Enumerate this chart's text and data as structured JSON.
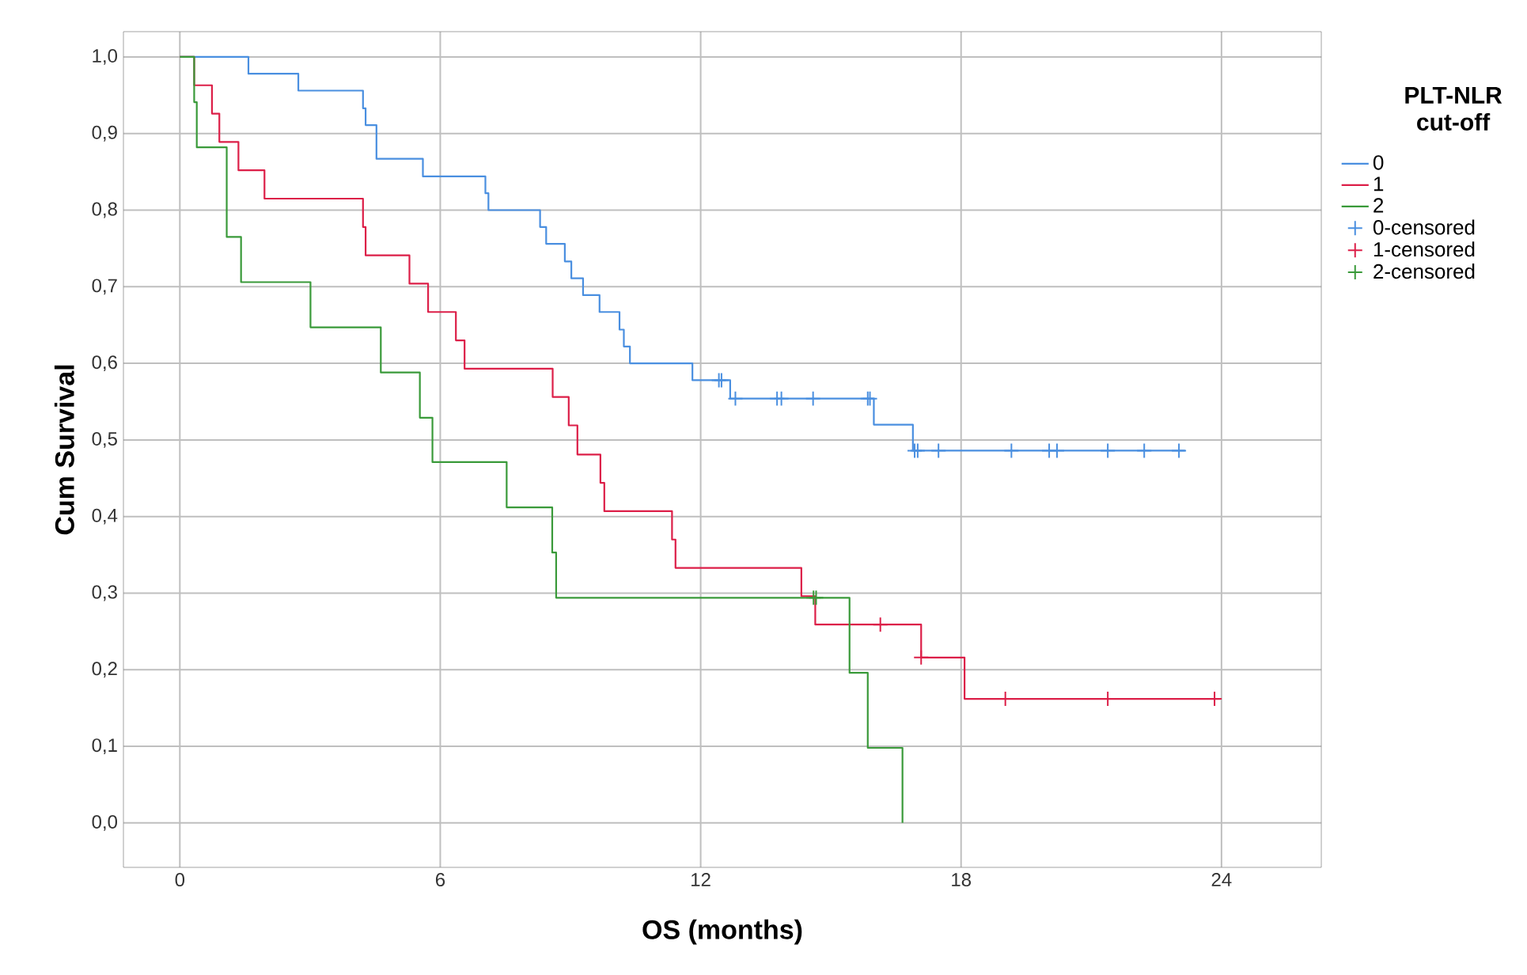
{
  "chart_data": {
    "type": "step",
    "xlabel": "OS (months)",
    "ylabel": "Cum Survival",
    "legend_title": "PLT-NLR cut-off",
    "xlim": [
      -1.3,
      26.3
    ],
    "ylim": [
      -0.058,
      1.033
    ],
    "xticks": [
      0,
      6,
      12,
      18,
      24
    ],
    "yticks": [
      {
        "value": 0,
        "label": "0,0"
      },
      {
        "value": 0.1,
        "label": "0,1"
      },
      {
        "value": 0.2,
        "label": "0,2"
      },
      {
        "value": 0.3,
        "label": "0,3"
      },
      {
        "value": 0.4,
        "label": "0,4"
      },
      {
        "value": 0.5,
        "label": "0,5"
      },
      {
        "value": 0.6,
        "label": "0,6"
      },
      {
        "value": 0.7,
        "label": "0,7"
      },
      {
        "value": 0.8,
        "label": "0,8"
      },
      {
        "value": 0.9,
        "label": "0,9"
      },
      {
        "value": 1.0,
        "label": "1,0"
      }
    ],
    "grid": true,
    "legend": "right",
    "series": [
      {
        "name": "0",
        "color": "#4a8fe0",
        "x": [
          0,
          1.58,
          2.73,
          4.22,
          4.28,
          4.53,
          5.6,
          7.04,
          7.11,
          8.3,
          8.44,
          8.87,
          9.02,
          9.29,
          9.67,
          10.13,
          10.23,
          10.37,
          11.81,
          12.68,
          15.99,
          16.89,
          23.16
        ],
        "values": [
          1.0,
          0.978,
          0.956,
          0.933,
          0.911,
          0.867,
          0.844,
          0.822,
          0.8,
          0.778,
          0.756,
          0.733,
          0.711,
          0.689,
          0.667,
          0.644,
          0.622,
          0.6,
          0.578,
          0.554,
          0.52,
          0.486,
          0.486
        ]
      },
      {
        "name": "1",
        "color": "#dc1f48",
        "x": [
          0,
          0.33,
          0.74,
          0.91,
          1.35,
          1.95,
          4.22,
          4.28,
          5.29,
          5.72,
          6.36,
          6.56,
          8.59,
          8.96,
          9.16,
          9.69,
          9.78,
          11.34,
          11.42,
          14.32,
          14.64,
          17.08,
          18.08,
          23.98
        ],
        "values": [
          1.0,
          0.963,
          0.926,
          0.889,
          0.852,
          0.815,
          0.778,
          0.741,
          0.704,
          0.667,
          0.63,
          0.593,
          0.556,
          0.519,
          0.481,
          0.444,
          0.407,
          0.37,
          0.333,
          0.296,
          0.259,
          0.216,
          0.162,
          0.162
        ]
      },
      {
        "name": "2",
        "color": "#3a9a3a",
        "x": [
          0,
          0.33,
          0.39,
          1.08,
          1.41,
          3.01,
          4.63,
          5.53,
          5.82,
          7.53,
          8.58,
          8.67,
          15.43,
          15.85,
          16.65
        ],
        "values": [
          1.0,
          0.941,
          0.882,
          0.765,
          0.706,
          0.647,
          0.588,
          0.529,
          0.471,
          0.412,
          0.353,
          0.294,
          0.196,
          0.098,
          0.0
        ]
      },
      {
        "name": "0-censored",
        "type": "scatter",
        "marker": "cross",
        "color": "#4a8fe0",
        "x": [
          12.42,
          12.48,
          12.8,
          13.76,
          13.86,
          14.59,
          15.85,
          15.9,
          16.93,
          17.0,
          17.48,
          19.16,
          20.03,
          20.21,
          21.38,
          22.22,
          23.02
        ],
        "values": [
          0.578,
          0.578,
          0.554,
          0.554,
          0.554,
          0.554,
          0.554,
          0.554,
          0.486,
          0.486,
          0.486,
          0.486,
          0.486,
          0.486,
          0.486,
          0.486,
          0.486
        ]
      },
      {
        "name": "1-censored",
        "type": "scatter",
        "marker": "cross",
        "color": "#dc1f48",
        "x": [
          16.14,
          17.08,
          19.02,
          21.38,
          23.84
        ],
        "values": [
          0.259,
          0.216,
          0.162,
          0.162,
          0.162
        ]
      },
      {
        "name": "2-censored",
        "type": "scatter",
        "marker": "cross",
        "color": "#3a9a3a",
        "x": [
          14.6,
          14.66
        ],
        "values": [
          0.294,
          0.294
        ]
      }
    ]
  }
}
